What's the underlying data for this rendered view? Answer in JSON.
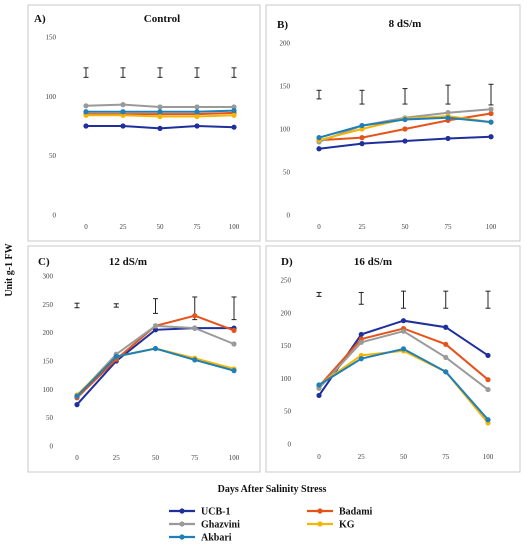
{
  "figure": {
    "ylabel": "Unit g-1 FW",
    "xlabel": "Days After Salinity Stress"
  },
  "legend": [
    {
      "name": "UCB-1",
      "color": "#1f2f9b"
    },
    {
      "name": "Badami",
      "color": "#e5531a"
    },
    {
      "name": "Ghazvini",
      "color": "#9a9a9a"
    },
    {
      "name": "KG",
      "color": "#f2b705"
    },
    {
      "name": "Akbari",
      "color": "#1f7fb8"
    }
  ],
  "chart_data": [
    {
      "type": "line",
      "panel": "A)",
      "title": "Control",
      "x": [
        0,
        25,
        50,
        75,
        100
      ],
      "ylim": [
        0,
        150
      ],
      "yticks": [
        0,
        50,
        100,
        150
      ],
      "grid": false,
      "error_bar_values": [
        120,
        120,
        120,
        120,
        120
      ],
      "error_bar_half": [
        4,
        4,
        4,
        4,
        4
      ],
      "series": [
        {
          "name": "UCB-1",
          "values": [
            75,
            75,
            73,
            75,
            74
          ]
        },
        {
          "name": "Badami",
          "values": [
            85,
            85,
            85,
            85,
            86
          ]
        },
        {
          "name": "Ghazvini",
          "values": [
            92,
            93,
            91,
            91,
            91
          ]
        },
        {
          "name": "KG",
          "values": [
            84,
            84,
            83,
            83,
            84
          ]
        },
        {
          "name": "Akbari",
          "values": [
            87,
            87,
            87,
            87,
            88
          ]
        }
      ]
    },
    {
      "type": "line",
      "panel": "B)",
      "title": "8 dS/m",
      "x": [
        0,
        25,
        50,
        75,
        100
      ],
      "ylim": [
        0,
        200
      ],
      "yticks": [
        0,
        50,
        100,
        150,
        200
      ],
      "grid": false,
      "error_bar_values": [
        140,
        137,
        138,
        140,
        140
      ],
      "error_bar_half": [
        5,
        8,
        9,
        11,
        12
      ],
      "series": [
        {
          "name": "UCB-1",
          "values": [
            77,
            83,
            86,
            89,
            91
          ]
        },
        {
          "name": "Badami",
          "values": [
            87,
            90,
            100,
            110,
            118
          ]
        },
        {
          "name": "Ghazvini",
          "values": [
            85,
            104,
            113,
            119,
            123
          ]
        },
        {
          "name": "KG",
          "values": [
            87,
            100,
            112,
            115,
            108
          ]
        },
        {
          "name": "Akbari",
          "values": [
            90,
            104,
            111,
            113,
            108
          ]
        }
      ]
    },
    {
      "type": "line",
      "panel": "C)",
      "title": "12 dS/m",
      "x": [
        0,
        25,
        50,
        75,
        100
      ],
      "ylim": [
        0,
        300
      ],
      "yticks": [
        0,
        50,
        100,
        150,
        200,
        250,
        300
      ],
      "grid": false,
      "error_bar_values": [
        248,
        248,
        247,
        243,
        243
      ],
      "error_bar_half": [
        4,
        3,
        13,
        20,
        20
      ],
      "series": [
        {
          "name": "UCB-1",
          "values": [
            73,
            150,
            205,
            208,
            208
          ]
        },
        {
          "name": "Badami",
          "values": [
            85,
            153,
            212,
            230,
            204
          ]
        },
        {
          "name": "Ghazvini",
          "values": [
            88,
            162,
            212,
            208,
            180
          ]
        },
        {
          "name": "KG",
          "values": [
            90,
            158,
            172,
            155,
            136
          ]
        },
        {
          "name": "Akbari",
          "values": [
            88,
            158,
            172,
            152,
            133
          ]
        }
      ]
    },
    {
      "type": "line",
      "panel": "D)",
      "title": "16 dS/m",
      "x": [
        0,
        25,
        50,
        75,
        100
      ],
      "ylim": [
        0,
        250
      ],
      "yticks": [
        0,
        50,
        100,
        150,
        200,
        250
      ],
      "grid": false,
      "error_bar_values": [
        228,
        222,
        220,
        220,
        220
      ],
      "error_bar_half": [
        3,
        9,
        13,
        13,
        13
      ],
      "series": [
        {
          "name": "UCB-1",
          "values": [
            74,
            167,
            188,
            178,
            135
          ]
        },
        {
          "name": "Badami",
          "values": [
            88,
            160,
            176,
            152,
            98
          ]
        },
        {
          "name": "Ghazvini",
          "values": [
            85,
            155,
            172,
            132,
            83
          ]
        },
        {
          "name": "KG",
          "values": [
            90,
            135,
            142,
            110,
            32
          ]
        },
        {
          "name": "Akbari",
          "values": [
            90,
            130,
            145,
            110,
            37
          ]
        }
      ]
    }
  ]
}
